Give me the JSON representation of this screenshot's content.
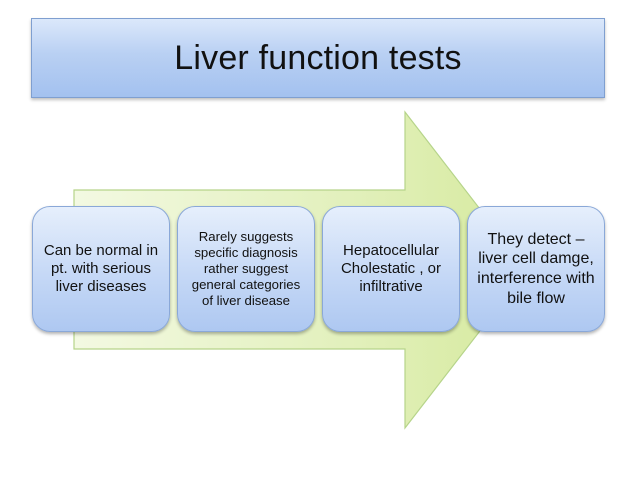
{
  "title": "Liver function tests",
  "colors": {
    "title_fill": "#b9d0f3",
    "arrow_fill": "#e6f3c4",
    "arrow_stroke": "#b6d48a",
    "box_fill": "#c5d8f6",
    "box_stroke": "#8aa8d8"
  },
  "steps": [
    {
      "text": "Can be normal in pt. with serious liver diseases"
    },
    {
      "text": "Rarely suggests specific diagnosis rather suggest general categories of liver disease"
    },
    {
      "text": "Hepatocellular Cholestatic , or infiltrative"
    },
    {
      "text": "They detect – liver cell damge, interference with bile flow"
    }
  ]
}
